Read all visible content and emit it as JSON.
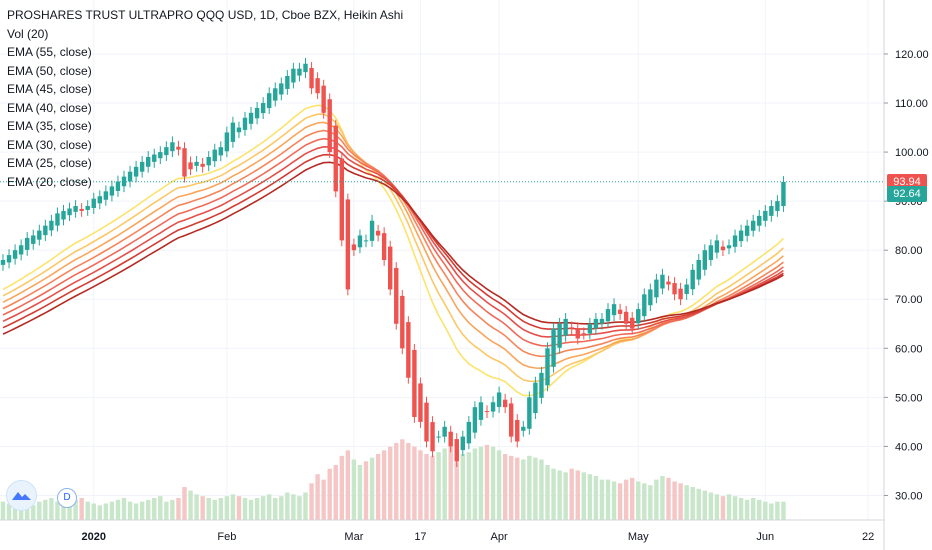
{
  "legend": {
    "title": "PROSHARES TRUST ULTRAPRO QQQ USD, 1D, Cboe BZX, Heikin Ashi",
    "vol": "Vol (20)",
    "ema": [
      "EMA (55, close)",
      "EMA (50, close)",
      "EMA (45, close)",
      "EMA (40, close)",
      "EMA (35, close)",
      "EMA (30, close)",
      "EMA (25, close)",
      "EMA (20, close)"
    ]
  },
  "badges": {
    "d_label": "D"
  },
  "price_labels": {
    "last": "93.94",
    "prev": "92.64",
    "last_color": "#ef5350",
    "prev_color": "#26a69a"
  },
  "chart_data": {
    "type": "candlestick",
    "title": "PROSHARES TRUST ULTRAPRO QQQ USD, 1D, Cboe BZX, Heikin Ashi",
    "ylim": [
      25,
      131
    ],
    "y_ticks": [
      "30.00",
      "40.00",
      "50.00",
      "60.00",
      "70.00",
      "80.00",
      "90.00",
      "100.00",
      "110.00",
      "120.00"
    ],
    "x_ticks": [
      "2020",
      "Feb",
      "Mar",
      "17",
      "Apr",
      "May",
      "Jun",
      "22"
    ],
    "colors": {
      "up": "#26a69a",
      "down": "#ef5350",
      "vol_up": "#c8e6c9",
      "vol_down": "#f5c6c6"
    },
    "last_price": 93.94,
    "prev_close_line": 92.64,
    "closes": [
      78,
      79,
      80,
      81,
      82.5,
      83,
      84,
      85,
      86,
      87.5,
      88,
      88.5,
      89,
      88,
      89,
      90.5,
      91,
      92,
      93,
      94,
      95,
      96,
      97,
      98,
      99,
      99.5,
      100,
      101,
      102,
      100.5,
      95,
      96.5,
      98,
      97,
      99,
      100.5,
      101,
      104,
      106,
      105,
      107,
      108,
      109,
      110,
      112,
      113,
      114,
      115.5,
      117,
      117,
      118,
      113,
      112,
      108,
      100,
      92,
      82,
      72,
      80,
      83,
      82,
      86,
      83,
      78,
      72,
      65,
      60,
      54,
      46,
      45,
      41,
      39,
      42,
      44,
      40,
      37,
      42,
      45,
      48,
      49,
      47,
      49,
      51,
      48,
      42,
      41,
      44,
      50,
      53,
      55,
      60,
      64,
      65,
      66,
      64,
      62,
      63,
      65,
      66,
      66,
      68,
      69,
      67,
      65,
      64,
      68,
      71,
      72,
      74,
      75,
      73,
      71,
      70,
      73,
      76,
      78,
      80,
      81,
      82,
      80,
      81,
      83,
      84,
      85,
      86,
      87,
      88,
      89,
      90,
      93.9
    ],
    "volumes": [
      10,
      9,
      11,
      10,
      9,
      8,
      10,
      11,
      12,
      10,
      9,
      10,
      11,
      12,
      10,
      9,
      8,
      9,
      10,
      11,
      12,
      10,
      9,
      10,
      11,
      12,
      13,
      10,
      11,
      12,
      18,
      16,
      14,
      13,
      12,
      11,
      12,
      13,
      14,
      13,
      12,
      11,
      12,
      13,
      14,
      12,
      13,
      15,
      14,
      13,
      15,
      20,
      25,
      22,
      28,
      30,
      35,
      38,
      33,
      30,
      32,
      34,
      36,
      38,
      40,
      42,
      44,
      42,
      40,
      38,
      36,
      35,
      37,
      39,
      40,
      38,
      36,
      37,
      39,
      40,
      41,
      40,
      38,
      36,
      35,
      34,
      33,
      35,
      34,
      33,
      30,
      28,
      27,
      26,
      28,
      27,
      26,
      25,
      24,
      22,
      22,
      21,
      20,
      22,
      23,
      21,
      20,
      19,
      22,
      24,
      23,
      21,
      20,
      19,
      18,
      17,
      16,
      15,
      14,
      13,
      14,
      13,
      12,
      11,
      12,
      11,
      10,
      9,
      10,
      10
    ],
    "ema_series": [
      {
        "name": "EMA (20, close)",
        "color": "#fbe36c"
      },
      {
        "name": "EMA (25, close)",
        "color": "#fcc766"
      },
      {
        "name": "EMA (30, close)",
        "color": "#f9a55b"
      },
      {
        "name": "EMA (35, close)",
        "color": "#f6845a"
      },
      {
        "name": "EMA (40, close)",
        "color": "#ef6a57"
      },
      {
        "name": "EMA (45, close)",
        "color": "#e45049"
      },
      {
        "name": "EMA (50, close)",
        "color": "#d33c33"
      },
      {
        "name": "EMA (55, close)",
        "color": "#b52a22"
      }
    ]
  }
}
